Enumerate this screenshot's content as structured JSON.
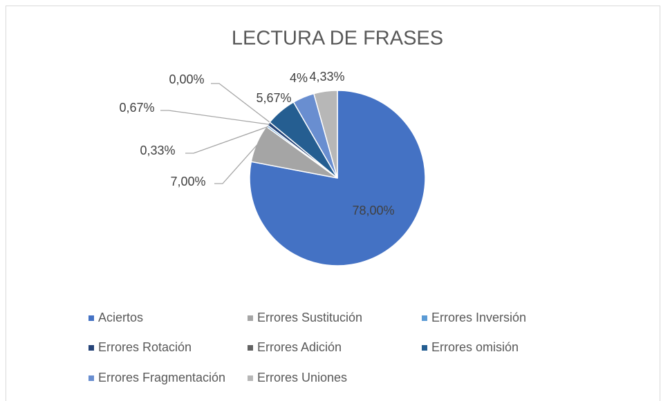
{
  "chart_data": {
    "type": "pie",
    "title": "LECTURA DE FRASES",
    "categories": [
      "Aciertos",
      "Errores Sustitución",
      "Errores Inversión",
      "Errores Rotación",
      "Errores Adición",
      "Errores omisión",
      "Errores Fragmentación",
      "Errores Uniones"
    ],
    "values": [
      78,
      7,
      0.33,
      0.67,
      0,
      5.67,
      4,
      4.33
    ],
    "value_labels": [
      "78,00%",
      "7,00%",
      "0,33%",
      "0,67%",
      "0,00%",
      "5,67%",
      "4%",
      "4,33%"
    ],
    "colors": [
      "#4472c4",
      "#a5a5a5",
      "#5b9bd5",
      "#264478",
      "#636363",
      "#255e91",
      "#698ed0",
      "#b7b7b7"
    ],
    "legend": "bottom"
  }
}
